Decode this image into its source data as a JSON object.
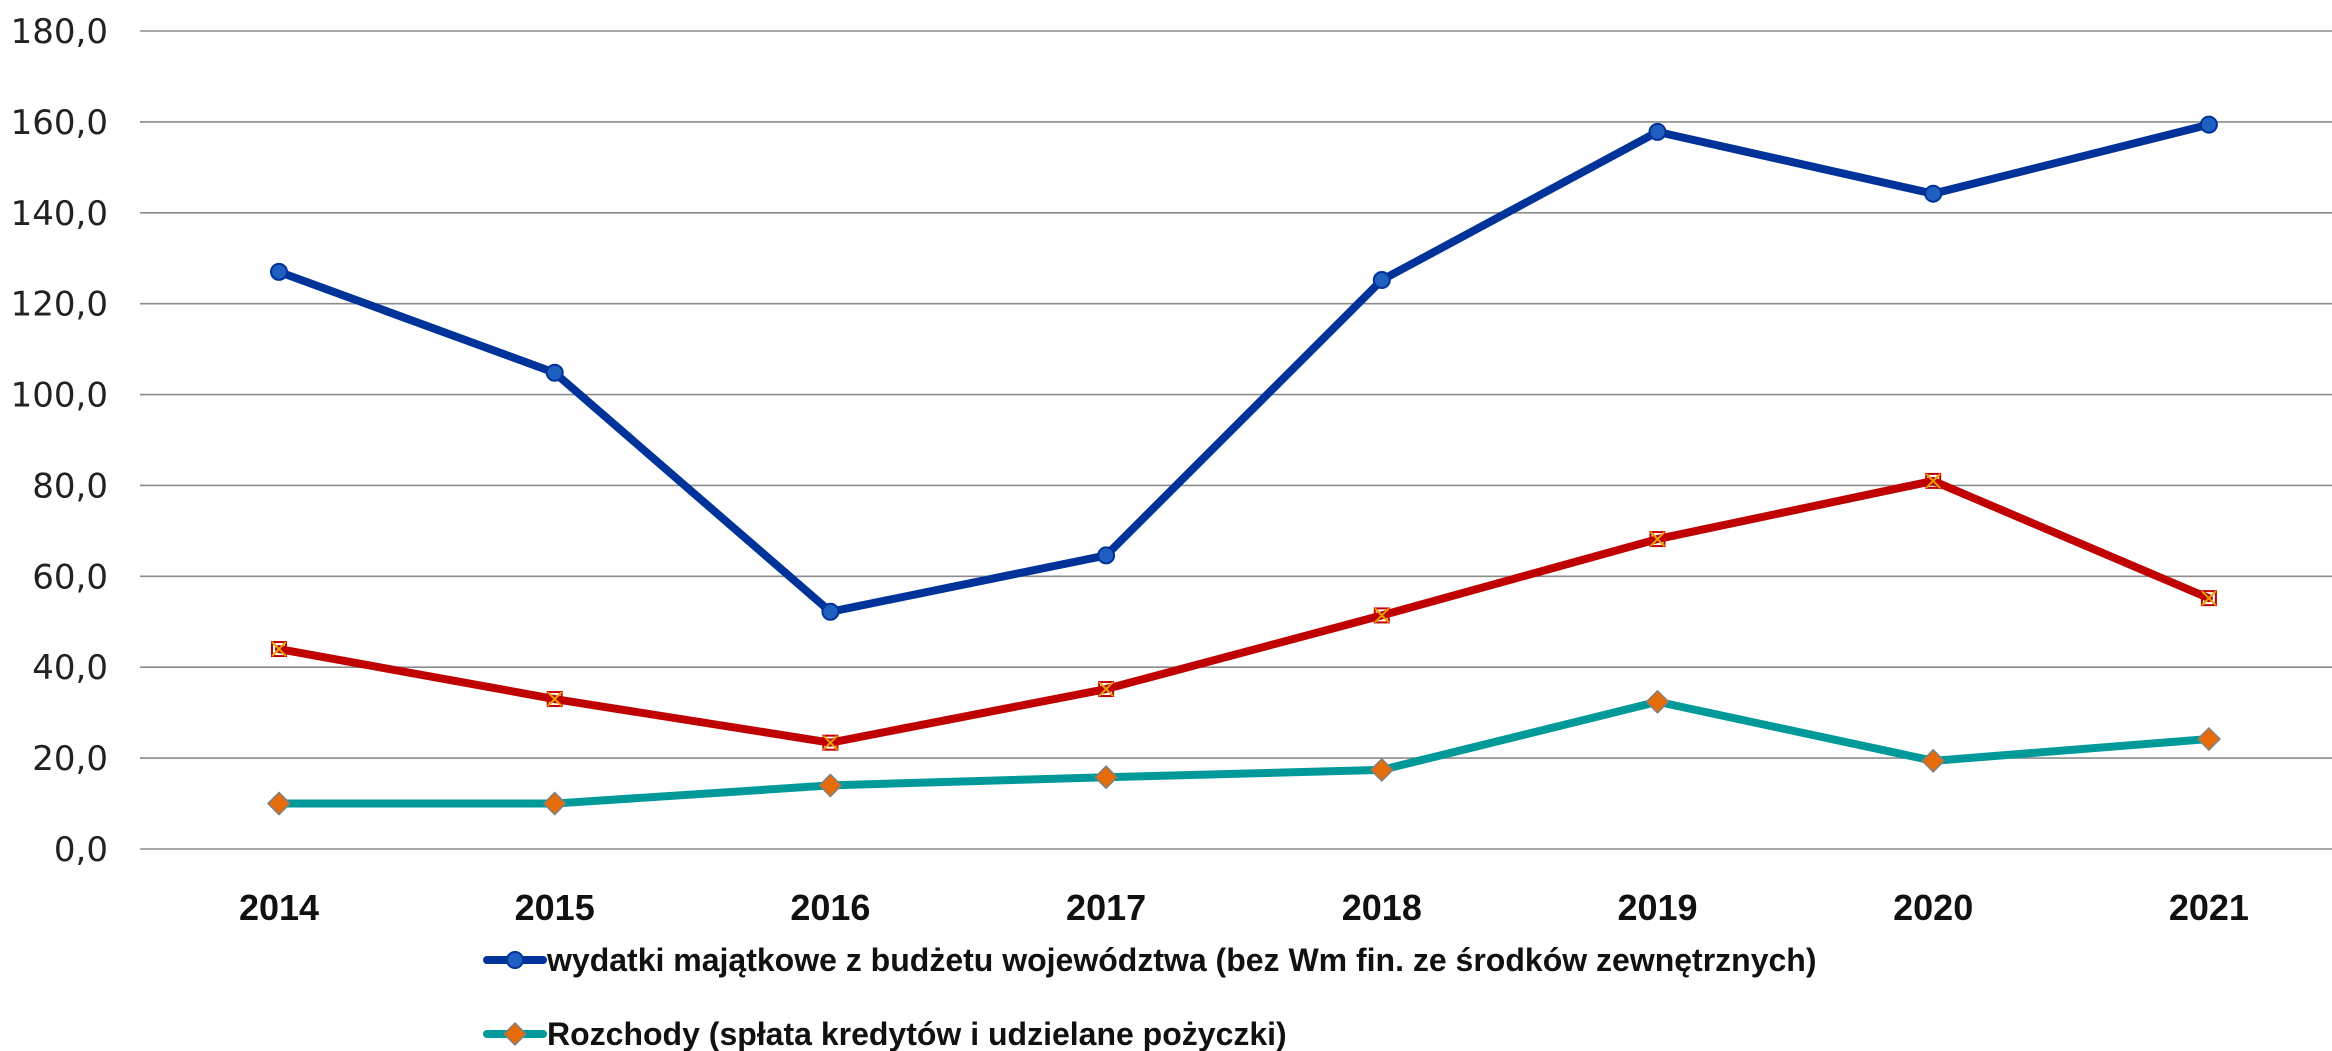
{
  "chart_data": {
    "type": "line",
    "categories": [
      "2014",
      "2015",
      "2016",
      "2017",
      "2018",
      "2019",
      "2020",
      "2021"
    ],
    "y_tick_labels": [
      "0,0",
      "20,0",
      "40,0",
      "60,0",
      "80,0",
      "100,0",
      "120,0",
      "140,0",
      "160,0",
      "180,0"
    ],
    "ylim": [
      0,
      180
    ],
    "grid": true,
    "legend_position": "bottom",
    "series": [
      {
        "name": "wydatki majątkowe z budżetu województwa (bez Wm fin. ze środków zewnętrznych)",
        "values": [
          127.0,
          104.8,
          52.2,
          64.6,
          125.2,
          157.8,
          144.2,
          159.4
        ],
        "color": "#003399",
        "marker": "circle",
        "marker_color": "#1f5fbf",
        "in_legend": true
      },
      {
        "name": "",
        "values": [
          44.0,
          33.0,
          23.4,
          35.2,
          51.4,
          68.2,
          81.0,
          55.2
        ],
        "color": "#c00000",
        "marker": "x-square",
        "marker_color": "#e8a000",
        "in_legend": false
      },
      {
        "name": "Rozchody (spłata kredytów i udzielane pożyczki)",
        "values": [
          10.0,
          10.0,
          14.0,
          15.8,
          17.4,
          32.4,
          19.4,
          24.2
        ],
        "color": "#009999",
        "marker": "diamond",
        "marker_color": "#e46c0a",
        "in_legend": true
      }
    ]
  }
}
